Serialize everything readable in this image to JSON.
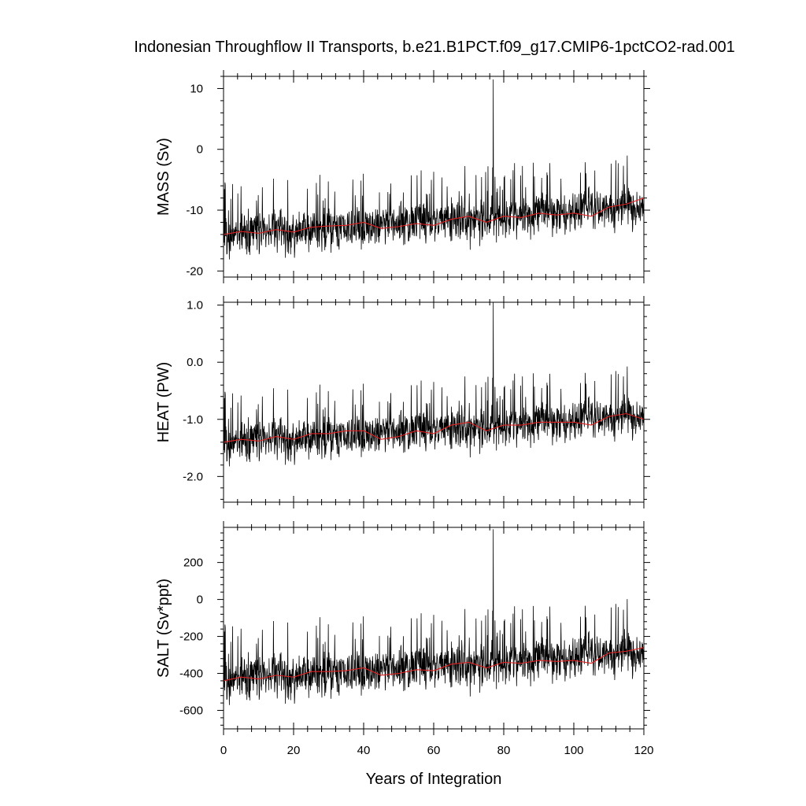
{
  "title": "Indonesian Throughflow II Transports, b.e21.B1PCT.f09_g17.CMIP6-1pctCO2-rad.001",
  "xlabel": "Years of Integration",
  "colors": {
    "raw": "#000000",
    "smooth": "#e02020",
    "axis": "#000000",
    "background": "#ffffff"
  },
  "chart_data": [
    {
      "type": "line",
      "ylabel": "MASS (Sv)",
      "xlim": [
        0,
        120
      ],
      "ylim": [
        -21,
        12
      ],
      "yticks": [
        10,
        0,
        -10,
        -20
      ],
      "ytick_labels": [
        "10",
        "0",
        "-10",
        "-20"
      ],
      "xticks": [
        0,
        20,
        40,
        60,
        80,
        100,
        120
      ],
      "xtick_labels": [
        "0",
        "20",
        "40",
        "60",
        "80",
        "100",
        "120"
      ],
      "grid": false,
      "series": [
        {
          "role": "monthly",
          "values": {
            "mean_start": -14.0,
            "mean_end": -9.5,
            "noise": 3.2,
            "spike_max": 11.5,
            "spike_at": 77
          }
        },
        {
          "role": "annual_mean",
          "x": [
            0,
            5,
            10,
            15,
            20,
            25,
            30,
            35,
            40,
            45,
            50,
            55,
            60,
            65,
            70,
            75,
            80,
            85,
            90,
            95,
            100,
            105,
            110,
            115,
            120
          ],
          "y": [
            -14,
            -13.5,
            -13.8,
            -13.2,
            -13.6,
            -12.8,
            -12.6,
            -12.5,
            -12.0,
            -13.0,
            -12.7,
            -12.2,
            -12.5,
            -11.5,
            -11.0,
            -12.0,
            -11.0,
            -11.2,
            -10.5,
            -10.8,
            -10.5,
            -11.0,
            -9.5,
            -9.0,
            -8.0
          ]
        }
      ]
    },
    {
      "type": "line",
      "ylabel": "HEAT (PW)",
      "xlim": [
        0,
        120
      ],
      "ylim": [
        -2.45,
        1.05
      ],
      "yticks": [
        1.0,
        0.0,
        -1.0,
        -2.0
      ],
      "ytick_labels": [
        "1.0",
        "0.0",
        "-1.0",
        "-2.0"
      ],
      "xticks": [
        0,
        20,
        40,
        60,
        80,
        100,
        120
      ],
      "xtick_labels": [
        "0",
        "20",
        "40",
        "60",
        "80",
        "100",
        "120"
      ],
      "grid": false,
      "series": [
        {
          "role": "monthly",
          "values": {
            "mean_start": -1.4,
            "mean_end": -0.95,
            "noise": 0.33,
            "spike_max": 1.05,
            "spike_at": 77
          }
        },
        {
          "role": "annual_mean",
          "x": [
            0,
            5,
            10,
            15,
            20,
            25,
            30,
            35,
            40,
            45,
            50,
            55,
            60,
            65,
            70,
            75,
            80,
            85,
            90,
            95,
            100,
            105,
            110,
            115,
            120
          ],
          "y": [
            -1.4,
            -1.35,
            -1.38,
            -1.3,
            -1.35,
            -1.25,
            -1.25,
            -1.2,
            -1.2,
            -1.35,
            -1.3,
            -1.2,
            -1.25,
            -1.1,
            -1.05,
            -1.2,
            -1.1,
            -1.1,
            -1.05,
            -1.05,
            -1.05,
            -1.1,
            -0.95,
            -0.9,
            -1.0
          ]
        }
      ]
    },
    {
      "type": "line",
      "ylabel": "SALT (Sv*ppt)",
      "xlim": [
        0,
        120
      ],
      "ylim": [
        -700,
        390
      ],
      "yticks": [
        200,
        0,
        -200,
        -400,
        -600
      ],
      "ytick_labels": [
        "200",
        "0",
        "-200",
        "-400",
        "-600"
      ],
      "xticks": [
        0,
        20,
        40,
        60,
        80,
        100,
        120
      ],
      "xtick_labels": [
        "0",
        "20",
        "40",
        "60",
        "80",
        "100",
        "120"
      ],
      "grid": false,
      "series": [
        {
          "role": "monthly",
          "values": {
            "mean_start": -430,
            "mean_end": -290,
            "noise": 110,
            "spike_max": 380,
            "spike_at": 77
          }
        },
        {
          "role": "annual_mean",
          "x": [
            0,
            5,
            10,
            15,
            20,
            25,
            30,
            35,
            40,
            45,
            50,
            55,
            60,
            65,
            70,
            75,
            80,
            85,
            90,
            95,
            100,
            105,
            110,
            115,
            120
          ],
          "y": [
            -440,
            -420,
            -430,
            -410,
            -420,
            -390,
            -390,
            -385,
            -370,
            -410,
            -400,
            -380,
            -385,
            -350,
            -340,
            -370,
            -340,
            -345,
            -330,
            -335,
            -330,
            -345,
            -290,
            -280,
            -260
          ]
        }
      ]
    }
  ]
}
